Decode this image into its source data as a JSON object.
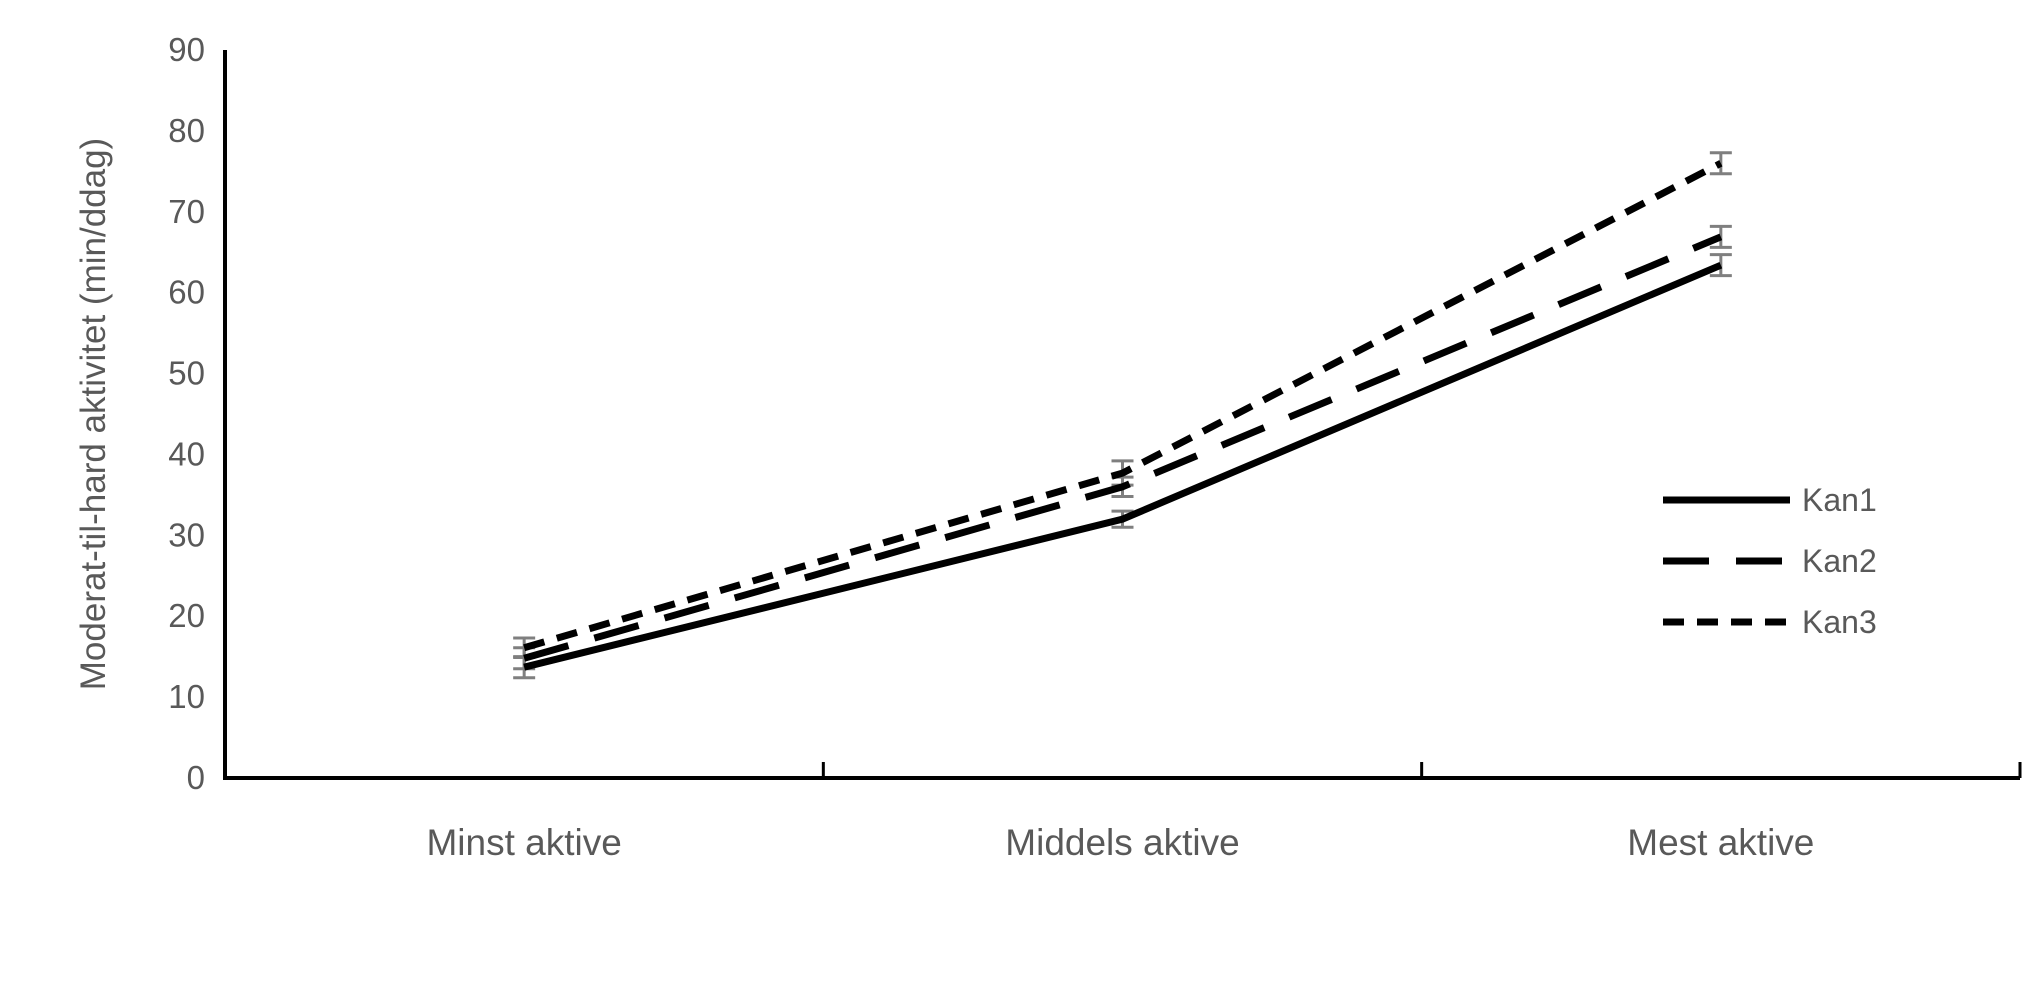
{
  "chart_data": {
    "type": "line",
    "title": "",
    "xlabel": "",
    "ylabel": "Moderat-til-hard aktivitet (min/ddag)",
    "categories": [
      "Minst aktive",
      "Middels aktive",
      "Mest aktive"
    ],
    "ylim": [
      0,
      90
    ],
    "ytick_step": 10,
    "ytick_labels": [
      "0",
      "10",
      "20",
      "30",
      "40",
      "50",
      "60",
      "70",
      "80",
      "90"
    ],
    "grid": false,
    "legend_position": "right-middle",
    "series": [
      {
        "name": "Kan1",
        "values": [
          13.7,
          32.0,
          63.4
        ],
        "errors": [
          1.3,
          1.0,
          1.3
        ],
        "dash": "solid",
        "color": "#000000"
      },
      {
        "name": "Kan2",
        "values": [
          14.8,
          36.0,
          66.9
        ],
        "errors": [
          1.3,
          1.2,
          1.3
        ],
        "dash": "long-dash",
        "color": "#000000"
      },
      {
        "name": "Kan3",
        "values": [
          16.1,
          37.7,
          76.0
        ],
        "errors": [
          1.2,
          1.5,
          1.3
        ],
        "dash": "short-dash",
        "color": "#000000"
      }
    ],
    "error_bars": true,
    "error_bar_color": "#7f7f7f",
    "axis_color": "#000000",
    "text_color": "#595959",
    "background_color": "#ffffff"
  }
}
